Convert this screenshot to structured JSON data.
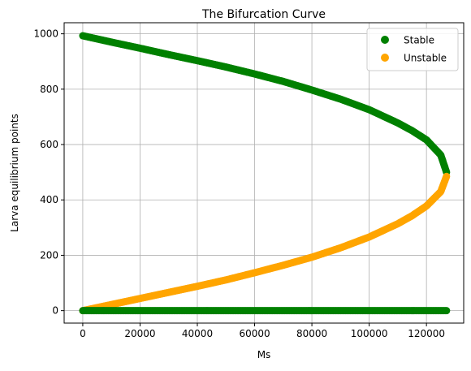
{
  "chart_data": {
    "type": "scatter",
    "title": "The Bifurcation Curve",
    "xlabel": "Ms",
    "ylabel": "Larva equilibrium points",
    "xlim": [
      -6500,
      133000
    ],
    "ylim": [
      -45,
      1040
    ],
    "xticks": [
      0,
      20000,
      40000,
      60000,
      80000,
      100000,
      120000
    ],
    "xtick_labels": [
      "0",
      "20000",
      "40000",
      "60000",
      "80000",
      "100000",
      "120000"
    ],
    "yticks": [
      0,
      200,
      400,
      600,
      800,
      1000
    ],
    "ytick_labels": [
      "0",
      "200",
      "400",
      "600",
      "800",
      "1000"
    ],
    "grid": true,
    "legend_position": "top-right",
    "series": [
      {
        "name": "Stable",
        "color": "#008000",
        "x": [
          0,
          10000,
          20000,
          30000,
          40000,
          50000,
          60000,
          70000,
          80000,
          90000,
          100000,
          110000,
          115000,
          120000,
          125000,
          127000
        ],
        "y": [
          993,
          970,
          948,
          925,
          903,
          880,
          855,
          828,
          797,
          764,
          726,
          678,
          650,
          617,
          562,
          500
        ]
      },
      {
        "name": "Unstable",
        "color": "#ffa500",
        "x": [
          0,
          10000,
          20000,
          30000,
          40000,
          50000,
          60000,
          70000,
          80000,
          90000,
          100000,
          110000,
          115000,
          120000,
          125000,
          127000
        ],
        "y": [
          0,
          22,
          44,
          66,
          88,
          111,
          137,
          164,
          193,
          227,
          266,
          314,
          343,
          378,
          430,
          485
        ]
      },
      {
        "name": "",
        "color": "#008000",
        "x": [
          0,
          127000
        ],
        "y": [
          0,
          0
        ],
        "legend": false
      }
    ]
  }
}
